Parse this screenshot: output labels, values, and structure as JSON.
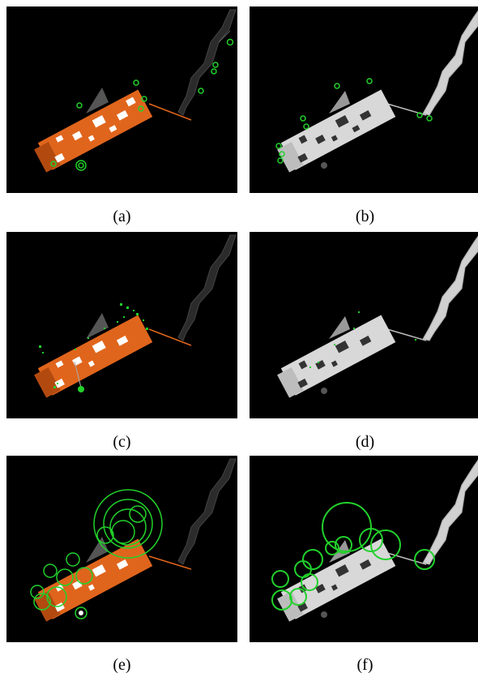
{
  "panels": [
    {
      "id": "a",
      "label": "(a)",
      "variant": "orange",
      "features": "sparse-circles"
    },
    {
      "id": "b",
      "label": "(b)",
      "variant": "gray",
      "features": "sparse-circles"
    },
    {
      "id": "c",
      "label": "(c)",
      "variant": "orange",
      "features": "dense-points"
    },
    {
      "id": "d",
      "label": "(d)",
      "variant": "gray",
      "features": "dense-points"
    },
    {
      "id": "e",
      "label": "(e)",
      "variant": "orange",
      "features": "large-circles"
    },
    {
      "id": "f",
      "label": "(f)",
      "variant": "gray",
      "features": "large-circles"
    }
  ],
  "colors": {
    "background": "#000000",
    "orange_body": "#e0651c",
    "orange_dark": "#b24a10",
    "gray_body": "#d8d8d8",
    "gray_dark": "#555555",
    "feature_green": "#22d12b",
    "arm_dark": "#2b2b2b",
    "arm_light": "#d0d0d0"
  }
}
